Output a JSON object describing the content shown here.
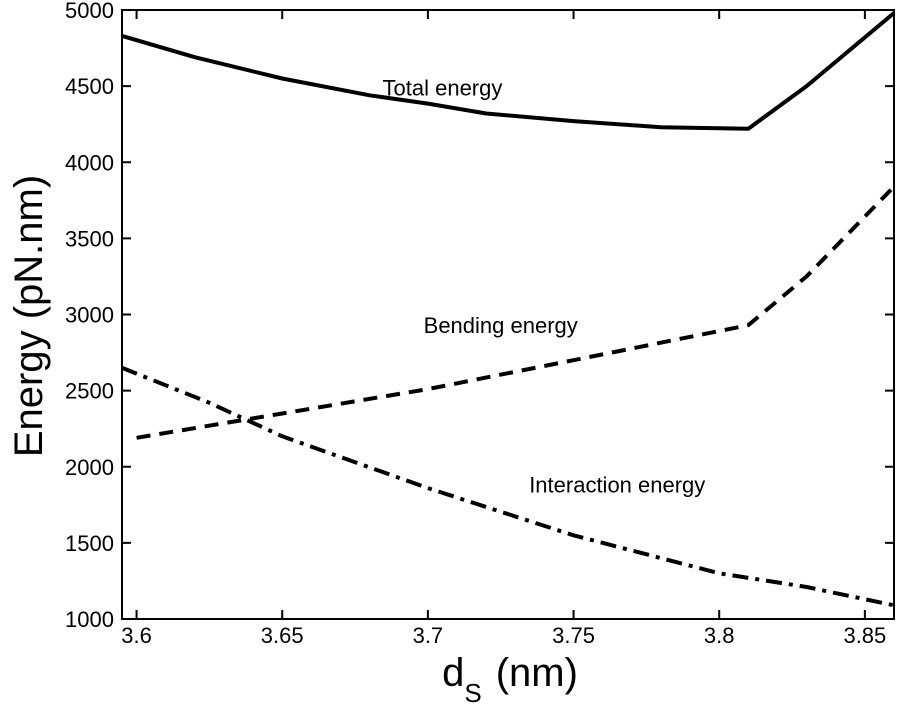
{
  "chart_data": {
    "type": "line",
    "xlabel": "d",
    "xlabel_sub": "S",
    "xlabel_unit": "(nm)",
    "ylabel": "Energy (pN.nm)",
    "xlim": [
      3.595,
      3.86
    ],
    "ylim": [
      1000,
      5000
    ],
    "x_ticks": [
      3.6,
      3.65,
      3.7,
      3.75,
      3.8,
      3.85
    ],
    "x_tick_labels": [
      "3.6",
      "3.65",
      "3.7",
      "3.75",
      "3.8",
      "3.85"
    ],
    "y_ticks": [
      1000,
      1500,
      2000,
      2500,
      3000,
      3500,
      4000,
      4500,
      5000
    ],
    "y_tick_labels": [
      "1000",
      "1500",
      "2000",
      "2500",
      "3000",
      "3500",
      "4000",
      "4500",
      "5000"
    ],
    "grid": false,
    "series": [
      {
        "name": "Total energy",
        "style": "solid",
        "color": "#000000",
        "x": [
          3.595,
          3.62,
          3.65,
          3.68,
          3.7,
          3.72,
          3.75,
          3.78,
          3.81,
          3.83,
          3.86
        ],
        "y": [
          4830,
          4690,
          4550,
          4440,
          4385,
          4320,
          4270,
          4230,
          4220,
          4500,
          4980
        ]
      },
      {
        "name": "Bending energy",
        "style": "dashed",
        "color": "#000000",
        "x": [
          3.6,
          3.65,
          3.7,
          3.75,
          3.81,
          3.83,
          3.86
        ],
        "y": [
          2190,
          2350,
          2510,
          2700,
          2930,
          3250,
          3840
        ]
      },
      {
        "name": "Interaction energy",
        "style": "dashdot",
        "color": "#000000",
        "x": [
          3.595,
          3.625,
          3.65,
          3.7,
          3.75,
          3.8,
          3.83,
          3.86
        ],
        "y": [
          2650,
          2420,
          2200,
          1860,
          1550,
          1300,
          1210,
          1090
        ]
      }
    ],
    "annotations": [
      {
        "text": "Total energy",
        "x": 3.705,
        "y": 4440
      },
      {
        "text": "Bending energy",
        "x": 3.725,
        "y": 2880
      },
      {
        "text": "Interaction energy",
        "x": 3.765,
        "y": 1830
      }
    ]
  }
}
